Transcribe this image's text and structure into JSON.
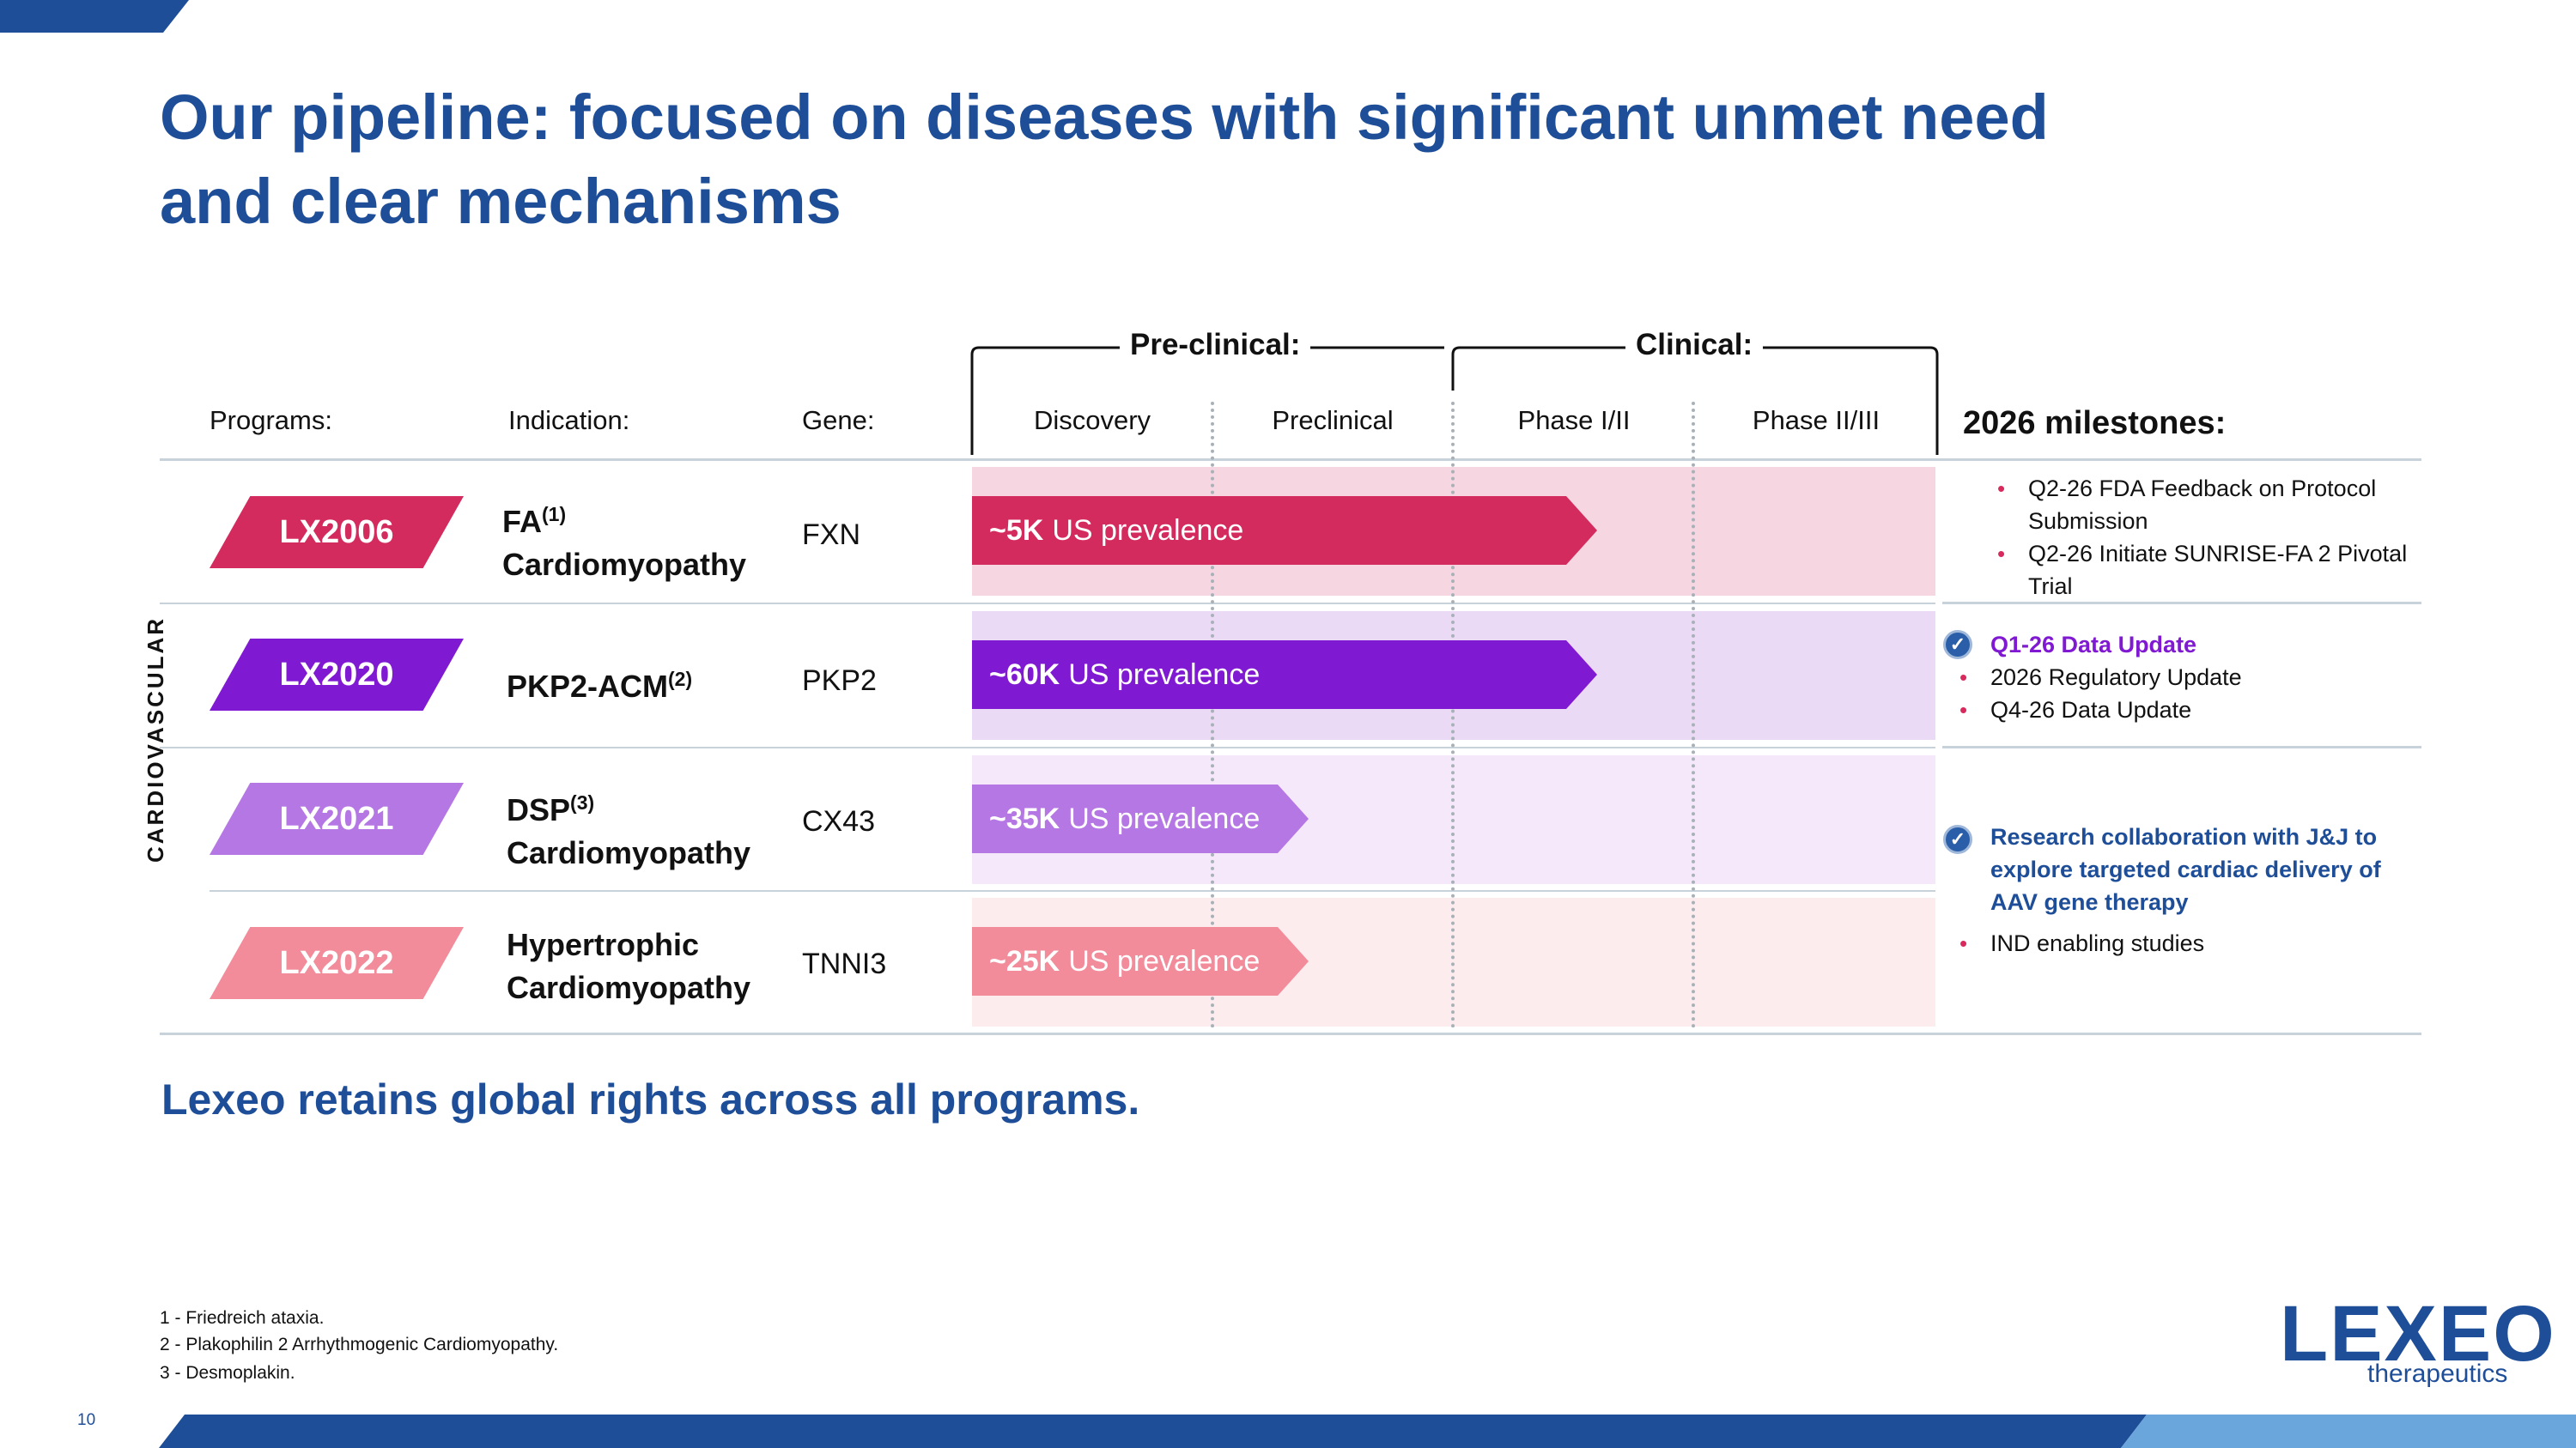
{
  "title": {
    "line1": "Our pipeline: focused on diseases with significant unmet need",
    "line2": "and clear mechanisms"
  },
  "columns": {
    "programs": "Programs:",
    "indication": "Indication:",
    "gene": "Gene:",
    "preclinical_group": "Pre-clinical:",
    "clinical_group": "Clinical:",
    "stages": [
      "Discovery",
      "Preclinical",
      "Phase I/II",
      "Phase II/III"
    ],
    "milestones": "2026 milestones:"
  },
  "therapeutic_area": "CARDIOVASCULAR",
  "programs": [
    {
      "code": "LX2006",
      "indication_main": "FA",
      "indication_sup": "(1)",
      "indication_line2": "Cardiomyopathy",
      "gene": "FXN",
      "prevalence_value": "~5K",
      "prevalence_label": "US prevalence",
      "stage_progress": 2.6,
      "color": "#d42b5e",
      "band_color": "#f6d6e1"
    },
    {
      "code": "LX2020",
      "indication_main": "PKP2-ACM",
      "indication_sup": "(2)",
      "indication_line2": "",
      "gene": "PKP2",
      "prevalence_value": "~60K",
      "prevalence_label": "US prevalence",
      "stage_progress": 2.6,
      "color": "#8019d2",
      "band_color": "#eadaf5"
    },
    {
      "code": "LX2021",
      "indication_main": "DSP",
      "indication_sup": "(3)",
      "indication_line2": "Cardiomyopathy",
      "gene": "CX43",
      "prevalence_value": "~35K",
      "prevalence_label": "US prevalence",
      "stage_progress": 1.4,
      "color": "#b477e3",
      "band_color": "#f4e8fa"
    },
    {
      "code": "LX2022",
      "indication_main": "Hypertrophic",
      "indication_sup": "",
      "indication_line2": "Cardiomyopathy",
      "gene": "TNNI3",
      "prevalence_value": "~25K",
      "prevalence_label": "US prevalence",
      "stage_progress": 1.4,
      "color": "#f28b9a",
      "band_color": "#fdecee"
    }
  ],
  "milestones": {
    "lx2006": [
      "Q2-26 FDA Feedback on Protocol Submission",
      "Q2-26 Initiate SUNRISE-FA 2 Pivotal Trial"
    ],
    "lx2020_highlight": "Q1-26 Data Update",
    "lx2020": [
      "2026 Regulatory Update",
      "Q4-26 Data Update"
    ],
    "collab_highlight": "Research collaboration with J&J to explore targeted cardiac delivery of AAV gene therapy",
    "collab": [
      "IND enabling studies"
    ]
  },
  "tagline": "Lexeo retains global rights across all programs.",
  "footnotes": [
    "1 - Friedreich ataxia.",
    "2 - Plakophilin 2 Arrhythmogenic Cardiomyopathy.",
    "3 - Desmoplakin."
  ],
  "page_number": "10",
  "logo": {
    "word": "LEXEO",
    "sub": "therapeutics"
  },
  "colors": {
    "navy": "#1f4e99",
    "light_blue": "#6aa6dc",
    "purple_highlight": "#8019d2",
    "bullet": "#d62b5c"
  }
}
